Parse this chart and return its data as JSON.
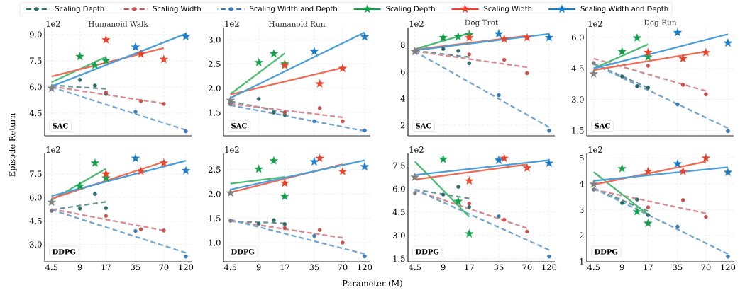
{
  "chart_data": [
    {
      "type": "scatter",
      "title": "Humanoid Walk",
      "ylabel": "Episode Return",
      "annotations": [
        "1e2",
        "SAC"
      ],
      "legend": "top",
      "grid": true,
      "log": "x",
      "tick_labels": "y",
      "xlim": [
        3.8,
        138
      ],
      "xticks": [
        4.5,
        9,
        17,
        35,
        70,
        120
      ],
      "ylim": [
        3.2,
        9.4
      ],
      "yticks": [
        {
          "value": 4.5,
          "label": "4.5"
        },
        {
          "value": 6,
          "label": "6.0"
        },
        {
          "value": 7.5,
          "label": "7.5"
        },
        {
          "value": 9,
          "label": "9.0"
        }
      ],
      "series": [
        {
          "type": "line",
          "color": "#6a9595",
          "line_style": "dashed",
          "x": [
            4.5,
            17
          ],
          "values": [
            6.1,
            5.89
          ]
        },
        {
          "type": "line",
          "color": "#d88a8f",
          "line_style": "dashed",
          "x": [
            4.5,
            70
          ],
          "values": [
            6.03,
            5.05
          ]
        },
        {
          "type": "line",
          "color": "#74a6d2",
          "line_style": "dashed",
          "x": [
            4.5,
            120
          ],
          "values": [
            5.99,
            3.53
          ]
        },
        {
          "name": "Scaling Depth",
          "color": "#2f6b6b",
          "marker": "circle",
          "line_style": "dashed",
          "x": [
            9,
            13,
            17
          ],
          "values": [
            6.41,
            6.08,
            5.6
          ]
        },
        {
          "name": "Scaling Width",
          "color": "#c8504e",
          "marker": "circle",
          "line_style": "dashed",
          "x": [
            17,
            40,
            70
          ],
          "values": [
            5.68,
            5.19,
            5.03
          ]
        },
        {
          "name": "Scaling Width and Depth",
          "color": "#3b7bb8",
          "marker": "circle",
          "line_style": "dashed",
          "x": [
            35,
            120
          ],
          "values": [
            4.57,
            3.46
          ]
        },
        {
          "type": "line",
          "color": "#4dbb73",
          "line_style": "solid",
          "x": [
            4.5,
            17
          ],
          "values": [
            6.27,
            7.72
          ]
        },
        {
          "type": "line",
          "color": "#ee6b55",
          "line_style": "solid",
          "x": [
            4.5,
            70
          ],
          "values": [
            6.6,
            8.23
          ]
        },
        {
          "type": "line",
          "color": "#4a9fd8",
          "line_style": "solid",
          "x": [
            4.5,
            120
          ],
          "values": [
            6.03,
            9.05
          ]
        },
        {
          "name": "Scaling Depth",
          "color": "#14a04a",
          "marker": "star",
          "line_style": "solid",
          "x": [
            9,
            13,
            17
          ],
          "values": [
            7.74,
            7.24,
            7.51
          ]
        },
        {
          "name": "Scaling Width",
          "color": "#e8452c",
          "marker": "star",
          "line_style": "solid",
          "x": [
            17,
            40,
            70
          ],
          "values": [
            8.7,
            7.88,
            7.58
          ]
        },
        {
          "name": "Scaling Width and Depth",
          "color": "#1c7cc7",
          "marker": "star",
          "line_style": "solid",
          "x": [
            35,
            120
          ],
          "values": [
            8.28,
            8.89
          ]
        },
        {
          "color": "#7f7f7f",
          "marker": "star",
          "x": [
            4.5
          ],
          "values": [
            5.92
          ]
        }
      ]
    },
    {
      "type": "scatter",
      "title": "Humanoid Run",
      "annotations": [
        "1e2",
        "SAC"
      ],
      "grid": true,
      "log": "x",
      "tick_labels": "y",
      "xlim": [
        3.8,
        138
      ],
      "xticks": [
        4.5,
        9,
        17,
        35,
        70,
        120
      ],
      "ylim": [
        1.02,
        3.25
      ],
      "yticks": [
        {
          "value": 1.5,
          "label": "1.5"
        },
        {
          "value": 2,
          "label": "2.0"
        },
        {
          "value": 2.5,
          "label": "2.5"
        },
        {
          "value": 3,
          "label": "3.0"
        }
      ],
      "series": [
        {
          "type": "line",
          "color": "#6a9595",
          "line_style": "dashed",
          "x": [
            4.5,
            17
          ],
          "values": [
            1.73,
            1.5
          ]
        },
        {
          "type": "line",
          "color": "#d88a8f",
          "line_style": "dashed",
          "x": [
            4.5,
            70
          ],
          "values": [
            1.68,
            1.4
          ]
        },
        {
          "type": "line",
          "color": "#74a6d2",
          "line_style": "dashed",
          "x": [
            4.5,
            120
          ],
          "values": [
            1.65,
            1.12
          ]
        },
        {
          "color": "#2f6b6b",
          "marker": "circle",
          "x": [
            9,
            13,
            17
          ],
          "values": [
            1.78,
            1.5,
            1.45
          ]
        },
        {
          "color": "#c8504e",
          "marker": "circle",
          "x": [
            17,
            40,
            70
          ],
          "values": [
            1.5,
            1.59,
            1.32
          ]
        },
        {
          "color": "#3b7bb8",
          "marker": "circle",
          "x": [
            35,
            120
          ],
          "values": [
            1.32,
            1.13
          ]
        },
        {
          "color": "#7f7f7f",
          "marker": "circle",
          "x": [
            4.5
          ],
          "values": [
            1.67
          ]
        },
        {
          "type": "line",
          "color": "#4dbb73",
          "line_style": "solid",
          "x": [
            4.5,
            17
          ],
          "values": [
            1.88,
            2.72
          ]
        },
        {
          "type": "line",
          "color": "#ee6b55",
          "line_style": "solid",
          "x": [
            4.5,
            70
          ],
          "values": [
            1.87,
            2.42
          ]
        },
        {
          "type": "line",
          "color": "#4a9fd8",
          "line_style": "solid",
          "x": [
            4.5,
            120
          ],
          "values": [
            1.8,
            3.15
          ]
        },
        {
          "color": "#14a04a",
          "marker": "star",
          "x": [
            9,
            13,
            17
          ],
          "values": [
            2.53,
            2.71,
            2.5
          ]
        },
        {
          "color": "#e8452c",
          "marker": "star",
          "x": [
            17,
            40,
            70
          ],
          "values": [
            2.47,
            2.09,
            2.41
          ]
        },
        {
          "color": "#1c7cc7",
          "marker": "star",
          "x": [
            35,
            120
          ],
          "values": [
            2.76,
            3.06
          ]
        },
        {
          "color": "#7f7f7f",
          "marker": "star",
          "x": [
            4.5
          ],
          "values": [
            1.75
          ]
        }
      ]
    },
    {
      "type": "scatter",
      "title": "Dog Trot",
      "annotations": [
        "1e2",
        "SAC"
      ],
      "grid": true,
      "log": "x",
      "tick_labels": "y",
      "xlim": [
        3.8,
        138
      ],
      "xticks": [
        4.5,
        9,
        17,
        35,
        70,
        120
      ],
      "ylim": [
        1.2,
        9.3
      ],
      "yticks": [
        2,
        4,
        6,
        8
      ],
      "series": [
        {
          "type": "line",
          "color": "#6a9595",
          "line_style": "dashed",
          "x": [
            4.5,
            17
          ],
          "values": [
            7.56,
            7.09
          ]
        },
        {
          "type": "line",
          "color": "#d88a8f",
          "line_style": "dashed",
          "x": [
            4.5,
            70
          ],
          "values": [
            7.53,
            6.33
          ]
        },
        {
          "type": "line",
          "color": "#74a6d2",
          "line_style": "dashed",
          "x": [
            4.5,
            120
          ],
          "values": [
            7.51,
            1.84
          ]
        },
        {
          "color": "#2f6b6b",
          "marker": "circle",
          "x": [
            9,
            13,
            17
          ],
          "values": [
            7.7,
            7.56,
            6.63
          ]
        },
        {
          "color": "#c8504e",
          "marker": "circle",
          "x": [
            17,
            40,
            70
          ],
          "values": [
            7.3,
            6.89,
            5.89
          ]
        },
        {
          "color": "#3b7bb8",
          "marker": "circle",
          "x": [
            35,
            120
          ],
          "values": [
            4.24,
            1.58
          ]
        },
        {
          "type": "line",
          "color": "#4dbb73",
          "line_style": "solid",
          "x": [
            4.5,
            17
          ],
          "values": [
            7.68,
            8.88
          ]
        },
        {
          "type": "line",
          "color": "#ee6b55",
          "line_style": "solid",
          "x": [
            4.5,
            70
          ],
          "values": [
            7.65,
            8.69
          ]
        },
        {
          "type": "line",
          "color": "#4a9fd8",
          "line_style": "solid",
          "x": [
            4.5,
            120
          ],
          "values": [
            7.6,
            8.83
          ]
        },
        {
          "color": "#14a04a",
          "marker": "star",
          "x": [
            9,
            13,
            17
          ],
          "values": [
            8.55,
            8.62,
            8.76
          ]
        },
        {
          "color": "#e8452c",
          "marker": "star",
          "x": [
            17,
            40,
            70
          ],
          "values": [
            8.55,
            8.44,
            8.55
          ]
        },
        {
          "color": "#1c7cc7",
          "marker": "star",
          "x": [
            35,
            120
          ],
          "values": [
            8.83,
            8.55
          ]
        },
        {
          "color": "#7f7f7f",
          "marker": "star",
          "x": [
            4.5
          ],
          "values": [
            7.51
          ]
        }
      ]
    },
    {
      "type": "scatter",
      "title": "Dog Run",
      "annotations": [
        "1e2",
        "SAC"
      ],
      "grid": true,
      "log": "x",
      "tick_labels": "y",
      "xlim": [
        3.8,
        138
      ],
      "xticks": [
        4.5,
        9,
        17,
        35,
        70,
        120
      ],
      "ylim": [
        1.24,
        6.48
      ],
      "yticks": [
        {
          "value": 1.5,
          "label": "1.5"
        },
        {
          "value": 3,
          "label": "3.0"
        },
        {
          "value": 4.5,
          "label": "4.5"
        },
        {
          "value": 6,
          "label": "6.0"
        }
      ],
      "series": [
        {
          "type": "line",
          "color": "#6a9595",
          "line_style": "dashed",
          "x": [
            4.5,
            17
          ],
          "values": [
            4.73,
            3.57
          ]
        },
        {
          "type": "line",
          "color": "#d88a8f",
          "line_style": "dashed",
          "x": [
            4.5,
            70
          ],
          "values": [
            4.98,
            3.41
          ]
        },
        {
          "type": "line",
          "color": "#74a6d2",
          "line_style": "dashed",
          "x": [
            4.5,
            120
          ],
          "values": [
            4.71,
            1.61
          ]
        },
        {
          "color": "#2f6b6b",
          "marker": "circle",
          "x": [
            9,
            13,
            17
          ],
          "values": [
            4.12,
            3.64,
            3.57
          ]
        },
        {
          "color": "#c8504e",
          "marker": "circle",
          "x": [
            17,
            40,
            70
          ],
          "values": [
            4.63,
            3.71,
            3.25
          ]
        },
        {
          "color": "#3b7bb8",
          "marker": "circle",
          "x": [
            35,
            120
          ],
          "values": [
            2.76,
            1.47
          ]
        },
        {
          "color": "#7f7f7f",
          "marker": "circle",
          "x": [
            4.5
          ],
          "values": [
            4.76
          ]
        },
        {
          "type": "line",
          "color": "#4dbb73",
          "line_style": "solid",
          "x": [
            4.5,
            17
          ],
          "values": [
            4.5,
            5.67
          ]
        },
        {
          "type": "line",
          "color": "#ee6b55",
          "line_style": "solid",
          "x": [
            4.5,
            70
          ],
          "values": [
            4.42,
            5.32
          ]
        },
        {
          "type": "line",
          "color": "#4a9fd8",
          "line_style": "solid",
          "x": [
            4.5,
            120
          ],
          "values": [
            4.5,
            6.16
          ]
        },
        {
          "color": "#14a04a",
          "marker": "star",
          "x": [
            9,
            13,
            17
          ],
          "values": [
            5.32,
            5.98,
            5.05
          ]
        },
        {
          "color": "#e8452c",
          "marker": "star",
          "x": [
            17,
            40,
            70
          ],
          "values": [
            5.28,
            4.98,
            5.27
          ]
        },
        {
          "color": "#1c7cc7",
          "marker": "star",
          "x": [
            35,
            120
          ],
          "values": [
            6.24,
            5.73
          ]
        },
        {
          "color": "#7f7f7f",
          "marker": "star",
          "x": [
            4.5
          ],
          "values": [
            4.24
          ]
        }
      ]
    },
    {
      "type": "scatter",
      "annotations": [
        "1e2",
        "DDPG"
      ],
      "grid": true,
      "log": "x",
      "xlim": [
        3.8,
        138
      ],
      "xticks": [
        4.5,
        9,
        17,
        35,
        70,
        120
      ],
      "ylim": [
        1.9,
        8.8
      ],
      "yticks": [
        {
          "value": 3,
          "label": "3.0"
        },
        {
          "value": 4.5,
          "label": "4.5"
        },
        {
          "value": 6,
          "label": "6.0"
        },
        {
          "value": 7.5,
          "label": "7.5"
        }
      ],
      "series": [
        {
          "type": "line",
          "color": "#6a9595",
          "line_style": "dashed",
          "x": [
            4.5,
            17
          ],
          "values": [
            5.21,
            5.72
          ]
        },
        {
          "type": "line",
          "color": "#d88a8f",
          "line_style": "dashed",
          "x": [
            4.5,
            70
          ],
          "values": [
            5.26,
            3.89
          ]
        },
        {
          "type": "line",
          "color": "#74a6d2",
          "line_style": "dashed",
          "x": [
            4.5,
            120
          ],
          "values": [
            5.21,
            2.47
          ]
        },
        {
          "color": "#2f6b6b",
          "marker": "circle",
          "x": [
            9,
            13,
            17
          ],
          "values": [
            5.29,
            6.22,
            5.32
          ]
        },
        {
          "color": "#c8504e",
          "marker": "circle",
          "x": [
            17,
            40,
            70
          ],
          "values": [
            4.82,
            3.96,
            3.89
          ]
        },
        {
          "color": "#3b7bb8",
          "marker": "circle",
          "x": [
            35,
            120
          ],
          "values": [
            3.86,
            2.23
          ]
        },
        {
          "color": "#7f7f7f",
          "marker": "circle",
          "x": [
            4.5
          ],
          "values": [
            5.14
          ]
        },
        {
          "type": "line",
          "color": "#4dbb73",
          "line_style": "solid",
          "x": [
            4.5,
            17
          ],
          "values": [
            5.84,
            7.83
          ]
        },
        {
          "type": "line",
          "color": "#ee6b55",
          "line_style": "solid",
          "x": [
            4.5,
            70
          ],
          "values": [
            5.92,
            8.27
          ]
        },
        {
          "type": "line",
          "color": "#4a9fd8",
          "line_style": "solid",
          "x": [
            4.5,
            120
          ],
          "values": [
            6.09,
            8.34
          ]
        },
        {
          "color": "#14a04a",
          "marker": "star",
          "x": [
            9,
            13,
            17
          ],
          "values": [
            6.72,
            8.19,
            7.24
          ]
        },
        {
          "color": "#e8452c",
          "marker": "star",
          "x": [
            17,
            40,
            70
          ],
          "values": [
            7.5,
            7.67,
            8.19
          ]
        },
        {
          "color": "#1c7cc7",
          "marker": "star",
          "x": [
            35,
            120
          ],
          "values": [
            8.49,
            7.71
          ]
        },
        {
          "color": "#7f7f7f",
          "marker": "star",
          "x": [
            4.5
          ],
          "values": [
            5.69
          ]
        }
      ]
    },
    {
      "type": "scatter",
      "xlabel": "Parameter (M)",
      "annotations": [
        "1e2",
        "DDPG"
      ],
      "grid": true,
      "log": "x",
      "xlim": [
        3.8,
        138
      ],
      "xticks": [
        4.5,
        9,
        17,
        35,
        70,
        120
      ],
      "ylim": [
        0.61,
        2.83
      ],
      "yticks": [
        {
          "value": 1,
          "label": "1.0"
        },
        {
          "value": 1.5,
          "label": "1.5"
        },
        {
          "value": 2,
          "label": "2.0"
        },
        {
          "value": 2.5,
          "label": "2.5"
        }
      ],
      "series": [
        {
          "type": "line",
          "color": "#6a9595",
          "line_style": "dashed",
          "x": [
            4.5,
            17
          ],
          "values": [
            1.44,
            1.4
          ]
        },
        {
          "type": "line",
          "color": "#d88a8f",
          "line_style": "dashed",
          "x": [
            4.5,
            70
          ],
          "values": [
            1.45,
            1.1
          ]
        },
        {
          "type": "line",
          "color": "#74a6d2",
          "line_style": "dashed",
          "x": [
            4.5,
            120
          ],
          "values": [
            1.47,
            0.77
          ]
        },
        {
          "color": "#2f6b6b",
          "marker": "circle",
          "x": [
            9,
            13,
            17
          ],
          "values": [
            1.39,
            1.46,
            1.38
          ]
        },
        {
          "color": "#c8504e",
          "marker": "circle",
          "x": [
            17,
            40,
            70
          ],
          "values": [
            1.3,
            1.26,
            1.0
          ]
        },
        {
          "color": "#3b7bb8",
          "marker": "circle",
          "x": [
            35,
            120
          ],
          "values": [
            1.14,
            0.72
          ]
        },
        {
          "color": "#7f7f7f",
          "marker": "circle",
          "x": [
            4.5
          ],
          "values": [
            1.45
          ]
        },
        {
          "type": "line",
          "color": "#4dbb73",
          "line_style": "solid",
          "x": [
            4.5,
            17
          ],
          "values": [
            2.21,
            2.35
          ]
        },
        {
          "type": "line",
          "color": "#ee6b55",
          "line_style": "solid",
          "x": [
            4.5,
            70
          ],
          "values": [
            2.03,
            2.61
          ]
        },
        {
          "type": "line",
          "color": "#4a9fd8",
          "line_style": "solid",
          "x": [
            4.5,
            120
          ],
          "values": [
            2.09,
            2.69
          ]
        },
        {
          "color": "#14a04a",
          "marker": "star",
          "x": [
            9,
            13,
            17
          ],
          "values": [
            2.51,
            2.68,
            1.95
          ]
        },
        {
          "color": "#e8452c",
          "marker": "star",
          "x": [
            17,
            40,
            70
          ],
          "values": [
            2.22,
            2.73,
            2.46
          ]
        },
        {
          "color": "#1c7cc7",
          "marker": "star",
          "x": [
            35,
            120
          ],
          "values": [
            2.66,
            2.56
          ]
        },
        {
          "color": "#7f7f7f",
          "marker": "star",
          "x": [
            4.5
          ],
          "values": [
            2.02
          ]
        }
      ]
    },
    {
      "type": "scatter",
      "annotations": [
        "1e2",
        "DDPG"
      ],
      "grid": true,
      "log": "x",
      "xlim": [
        3.8,
        138
      ],
      "xticks": [
        4.5,
        9,
        17,
        35,
        70,
        120
      ],
      "ylim": [
        1.3,
        8.28
      ],
      "yticks": [
        {
          "value": 1.5,
          "label": "1.5"
        },
        {
          "value": 3,
          "label": "3.0"
        },
        {
          "value": 4.5,
          "label": "4.5"
        },
        {
          "value": 6,
          "label": "6.0"
        },
        {
          "value": 7.5,
          "label": "7.5"
        }
      ],
      "series": [
        {
          "type": "line",
          "color": "#6a9595",
          "line_style": "dashed",
          "x": [
            4.5,
            17
          ],
          "values": [
            5.95,
            5.38
          ]
        },
        {
          "type": "line",
          "color": "#d88a8f",
          "line_style": "dashed",
          "x": [
            4.5,
            70
          ],
          "values": [
            5.9,
            3.46
          ]
        },
        {
          "type": "line",
          "color": "#74a6d2",
          "line_style": "dashed",
          "x": [
            4.5,
            120
          ],
          "values": [
            5.95,
            2.06
          ]
        },
        {
          "color": "#2f6b6b",
          "marker": "circle",
          "x": [
            9,
            13,
            17
          ],
          "values": [
            5.63,
            6.13,
            4.83
          ]
        },
        {
          "color": "#c8504e",
          "marker": "circle",
          "x": [
            17,
            40,
            70
          ],
          "values": [
            5.05,
            4.01,
            3.24
          ]
        },
        {
          "color": "#3b7bb8",
          "marker": "circle",
          "x": [
            35,
            120
          ],
          "values": [
            4.23,
            1.64
          ]
        },
        {
          "color": "#7f7f7f",
          "marker": "circle",
          "x": [
            4.5
          ],
          "values": [
            5.72
          ]
        },
        {
          "type": "line",
          "color": "#4dbb73",
          "line_style": "solid",
          "x": [
            4.5,
            17
          ],
          "values": [
            7.76,
            4.2
          ]
        },
        {
          "type": "line",
          "color": "#ee6b55",
          "line_style": "solid",
          "x": [
            4.5,
            70
          ],
          "values": [
            6.6,
            7.58
          ]
        },
        {
          "type": "line",
          "color": "#4a9fd8",
          "line_style": "solid",
          "x": [
            4.5,
            120
          ],
          "values": [
            6.89,
            7.85
          ]
        },
        {
          "color": "#14a04a",
          "marker": "star",
          "x": [
            9,
            13,
            17
          ],
          "values": [
            7.91,
            5.19,
            3.1
          ]
        },
        {
          "color": "#e8452c",
          "marker": "star",
          "x": [
            17,
            40,
            70
          ],
          "values": [
            6.51,
            7.97,
            7.35
          ]
        },
        {
          "color": "#1c7cc7",
          "marker": "star",
          "x": [
            35,
            120
          ],
          "values": [
            7.85,
            7.65
          ]
        },
        {
          "color": "#7f7f7f",
          "marker": "star",
          "x": [
            4.5
          ],
          "values": [
            6.75
          ]
        }
      ]
    },
    {
      "type": "scatter",
      "annotations": [
        "1e2",
        "DDPG"
      ],
      "grid": true,
      "log": "x",
      "xlim": [
        3.8,
        138
      ],
      "xticks": [
        4.5,
        9,
        17,
        35,
        70,
        120
      ],
      "ylim": [
        0.98,
        5.18
      ],
      "yticks": [
        1,
        2,
        3,
        4,
        5
      ],
      "series": [
        {
          "type": "line",
          "color": "#6a9595",
          "line_style": "dashed",
          "x": [
            4.5,
            17
          ],
          "values": [
            3.83,
            2.94
          ]
        },
        {
          "type": "line",
          "color": "#d88a8f",
          "line_style": "dashed",
          "x": [
            4.5,
            70
          ],
          "values": [
            3.78,
            2.86
          ]
        },
        {
          "type": "line",
          "color": "#74a6d2",
          "line_style": "dashed",
          "x": [
            4.5,
            120
          ],
          "values": [
            3.83,
            1.28
          ]
        },
        {
          "color": "#2f6b6b",
          "marker": "circle",
          "x": [
            9,
            13,
            17
          ],
          "values": [
            3.26,
            3.39,
            2.79
          ]
        },
        {
          "color": "#c8504e",
          "marker": "circle",
          "x": [
            17,
            40,
            70
          ],
          "values": [
            3.09,
            3.37,
            2.72
          ]
        },
        {
          "color": "#3b7bb8",
          "marker": "circle",
          "x": [
            35,
            120
          ],
          "values": [
            2.34,
            1.18
          ]
        },
        {
          "color": "#7f7f7f",
          "marker": "circle",
          "x": [
            4.5
          ],
          "values": [
            3.78
          ]
        },
        {
          "type": "line",
          "color": "#4dbb73",
          "line_style": "solid",
          "x": [
            4.5,
            17
          ],
          "values": [
            4.46,
            2.81
          ]
        },
        {
          "type": "line",
          "color": "#ee6b55",
          "line_style": "solid",
          "x": [
            4.5,
            70
          ],
          "values": [
            3.97,
            4.87
          ]
        },
        {
          "type": "line",
          "color": "#4a9fd8",
          "line_style": "solid",
          "x": [
            4.5,
            120
          ],
          "values": [
            4.12,
            4.65
          ]
        },
        {
          "color": "#14a04a",
          "marker": "star",
          "x": [
            9,
            13,
            17
          ],
          "values": [
            4.59,
            2.92,
            2.47
          ]
        },
        {
          "color": "#e8452c",
          "marker": "star",
          "x": [
            17,
            40,
            70
          ],
          "values": [
            4.49,
            4.49,
            5.0
          ]
        },
        {
          "color": "#1c7cc7",
          "marker": "star",
          "x": [
            35,
            120
          ],
          "values": [
            4.78,
            4.45
          ]
        },
        {
          "color": "#7f7f7f",
          "marker": "star",
          "x": [
            4.5
          ],
          "values": [
            3.99
          ]
        }
      ]
    }
  ]
}
